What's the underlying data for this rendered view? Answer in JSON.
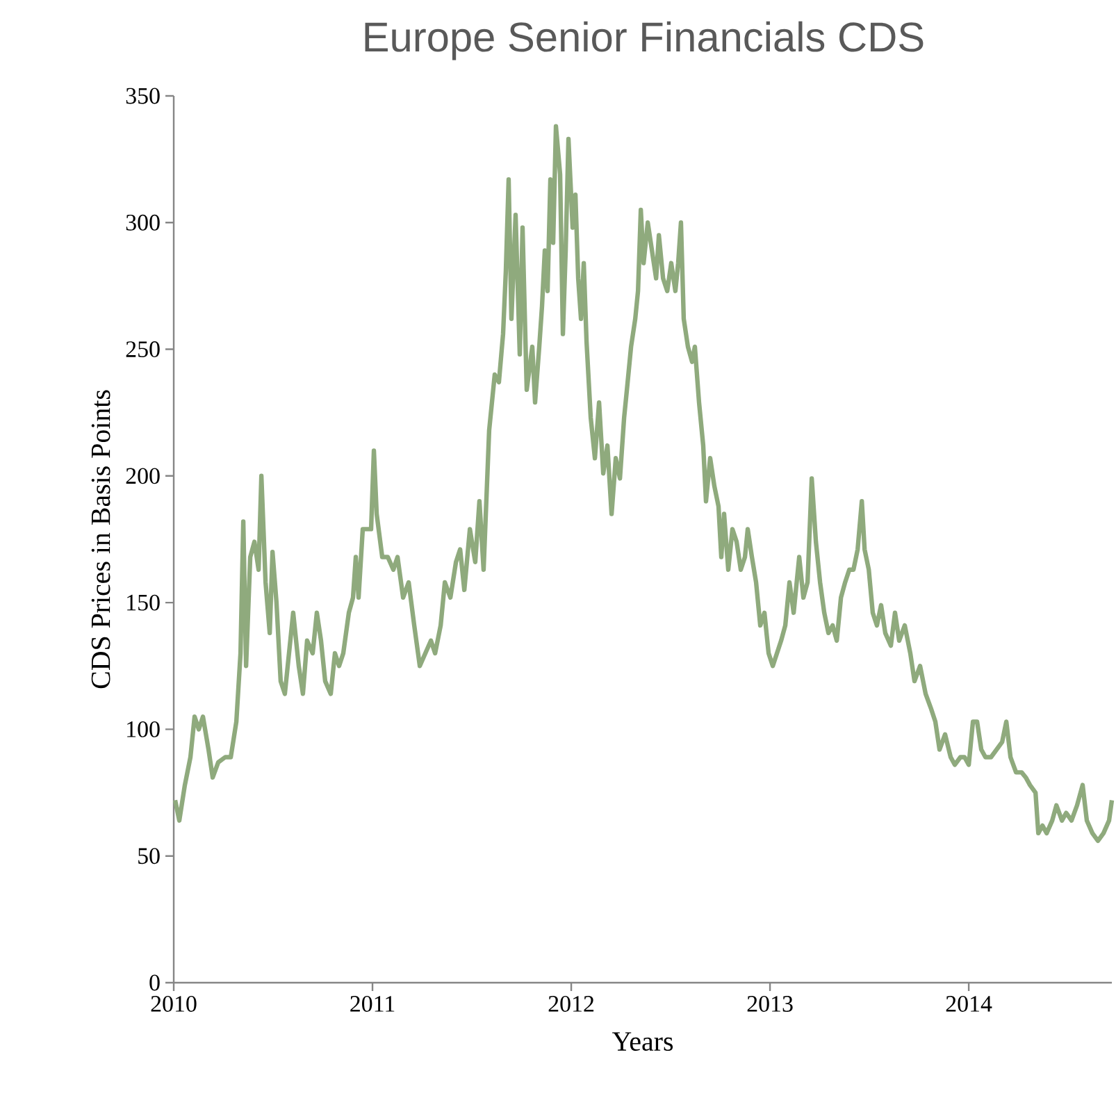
{
  "chart_data": {
    "type": "line",
    "title": "Europe Senior Financials CDS",
    "xlabel": "Years",
    "ylabel": "CDS Prices in Basis Points",
    "xlim": [
      2010,
      2014.72
    ],
    "xticks": [
      2010,
      2011,
      2012,
      2013,
      2014
    ],
    "ylim": [
      0,
      350
    ],
    "yticks": [
      0,
      50,
      100,
      150,
      200,
      250,
      300,
      350
    ],
    "series": [
      {
        "color": "#8faa7d",
        "x": [
          2010.007,
          2010.028,
          2010.056,
          2010.084,
          2010.105,
          2010.126,
          2010.147,
          2010.175,
          2010.196,
          2010.224,
          2010.259,
          2010.287,
          2010.315,
          2010.336,
          2010.35,
          2010.364,
          2010.385,
          2010.406,
          2010.427,
          2010.441,
          2010.462,
          2010.483,
          2010.497,
          2010.517,
          2010.538,
          2010.559,
          2010.58,
          2010.601,
          2010.629,
          2010.65,
          2010.671,
          2010.699,
          2010.72,
          2010.741,
          2010.762,
          2010.79,
          2010.811,
          2010.832,
          2010.853,
          2010.881,
          2010.902,
          2010.916,
          2010.93,
          2010.951,
          2010.972,
          2010.993,
          2011.007,
          2011.021,
          2011.049,
          2011.077,
          2011.105,
          2011.126,
          2011.154,
          2011.182,
          2011.21,
          2011.238,
          2011.266,
          2011.294,
          2011.315,
          2011.343,
          2011.364,
          2011.392,
          2011.42,
          2011.441,
          2011.462,
          2011.49,
          2011.517,
          2011.538,
          2011.559,
          2011.587,
          2011.615,
          2011.636,
          2011.657,
          2011.671,
          2011.685,
          2011.699,
          2011.72,
          2011.741,
          2011.755,
          2011.776,
          2011.804,
          2011.818,
          2011.839,
          2011.853,
          2011.867,
          2011.881,
          2011.895,
          2011.909,
          2011.923,
          2011.944,
          2011.958,
          2011.972,
          2011.986,
          2012.007,
          2012.021,
          2012.035,
          2012.049,
          2012.063,
          2012.077,
          2012.098,
          2012.119,
          2012.14,
          2012.161,
          2012.182,
          2012.203,
          2012.224,
          2012.245,
          2012.266,
          2012.28,
          2012.301,
          2012.322,
          2012.336,
          2012.35,
          2012.364,
          2012.385,
          2012.406,
          2012.427,
          2012.441,
          2012.462,
          2012.483,
          2012.503,
          2012.524,
          2012.538,
          2012.552,
          2012.566,
          2012.587,
          2012.608,
          2012.622,
          2012.643,
          2012.664,
          2012.678,
          2012.699,
          2012.72,
          2012.741,
          2012.755,
          2012.769,
          2012.79,
          2012.811,
          2012.832,
          2012.853,
          2012.874,
          2012.888,
          2012.909,
          2012.93,
          2012.951,
          2012.972,
          2012.993,
          2013.014,
          2013.035,
          2013.056,
          2013.077,
          2013.098,
          2013.119,
          2013.147,
          2013.168,
          2013.189,
          2013.21,
          2013.231,
          2013.252,
          2013.273,
          2013.294,
          2013.315,
          2013.336,
          2013.357,
          2013.378,
          2013.399,
          2013.42,
          2013.441,
          2013.462,
          2013.476,
          2013.497,
          2013.517,
          2013.538,
          2013.559,
          2013.58,
          2013.608,
          2013.629,
          2013.65,
          2013.678,
          2013.706,
          2013.727,
          2013.755,
          2013.783,
          2013.811,
          2013.832,
          2013.853,
          2013.881,
          2013.909,
          2013.93,
          2013.958,
          2013.979,
          2014.0,
          2014.021,
          2014.042,
          2014.063,
          2014.084,
          2014.112,
          2014.14,
          2014.168,
          2014.189,
          2014.21,
          2014.238,
          2014.266,
          2014.287,
          2014.308,
          2014.336,
          2014.35,
          2014.371,
          2014.392,
          2014.42,
          2014.441,
          2014.469,
          2014.49,
          2014.517,
          2014.545,
          2014.573,
          2014.594,
          2014.622,
          2014.65,
          2014.678,
          2014.706,
          2014.72
        ],
        "values": [
          72,
          64,
          78,
          89,
          105,
          100,
          105,
          92,
          81,
          87,
          89,
          89,
          103,
          130,
          182,
          125,
          168,
          174,
          163,
          200,
          158,
          138,
          170,
          150,
          119,
          114,
          130,
          146,
          125,
          114,
          135,
          130,
          146,
          135,
          119,
          114,
          130,
          125,
          130,
          146,
          152,
          168,
          152,
          179,
          179,
          179,
          210,
          185,
          168,
          168,
          163,
          168,
          152,
          158,
          141,
          125,
          130,
          135,
          130,
          141,
          158,
          152,
          166,
          171,
          155,
          179,
          166,
          190,
          163,
          218,
          240,
          237,
          256,
          281,
          317,
          262,
          303,
          248,
          298,
          234,
          251,
          229,
          251,
          267,
          289,
          273,
          317,
          292,
          338,
          319,
          256,
          289,
          333,
          298,
          311,
          278,
          262,
          284,
          253,
          223,
          207,
          229,
          201,
          212,
          185,
          207,
          199,
          223,
          234,
          251,
          262,
          273,
          305,
          284,
          300,
          289,
          278,
          295,
          278,
          273,
          284,
          273,
          284,
          300,
          262,
          251,
          245,
          251,
          229,
          212,
          190,
          207,
          196,
          188,
          168,
          185,
          163,
          179,
          174,
          163,
          168,
          179,
          168,
          158,
          141,
          146,
          130,
          125,
          130,
          135,
          141,
          158,
          146,
          168,
          152,
          158,
          199,
          174,
          158,
          146,
          138,
          141,
          135,
          152,
          158,
          163,
          163,
          171,
          190,
          171,
          163,
          146,
          141,
          149,
          138,
          133,
          146,
          135,
          141,
          130,
          119,
          125,
          114,
          108,
          103,
          92,
          98,
          89,
          86,
          89,
          89,
          86,
          103,
          103,
          92,
          89,
          89,
          92,
          95,
          103,
          89,
          83,
          83,
          81,
          78,
          75,
          59,
          62,
          59,
          64,
          70,
          64,
          67,
          64,
          70,
          78,
          64,
          59,
          56,
          59,
          64,
          72
        ]
      }
    ]
  }
}
